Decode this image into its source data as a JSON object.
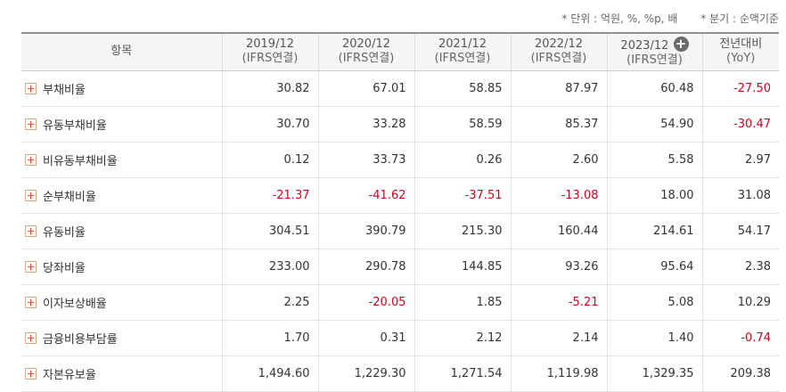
{
  "notes": {
    "unit": "* 단위 : 억원, %, %p, 배",
    "basis": "* 분기 : 순액기준"
  },
  "header": {
    "item": "항목",
    "cols": [
      {
        "year": "2019/12",
        "sub": "(IFRS연결)"
      },
      {
        "year": "2020/12",
        "sub": "(IFRS연결)"
      },
      {
        "year": "2021/12",
        "sub": "(IFRS연결)"
      },
      {
        "year": "2022/12",
        "sub": "(IFRS연결)"
      },
      {
        "year": "2023/12",
        "sub": "(IFRS연결)"
      }
    ],
    "yoy": {
      "label": "전년대비",
      "sub": "(YoY)"
    },
    "add_icon": "plus-circle-icon"
  },
  "rows": [
    {
      "label": "부채비율",
      "values": [
        "30.82",
        "67.01",
        "58.85",
        "87.97",
        "60.48",
        "-27.50"
      ]
    },
    {
      "label": "유동부채비율",
      "values": [
        "30.70",
        "33.28",
        "58.59",
        "85.37",
        "54.90",
        "-30.47"
      ]
    },
    {
      "label": "비유동부채비율",
      "values": [
        "0.12",
        "33.73",
        "0.26",
        "2.60",
        "5.58",
        "2.97"
      ]
    },
    {
      "label": "순부채비율",
      "values": [
        "-21.37",
        "-41.62",
        "-37.51",
        "-13.08",
        "18.00",
        "31.08"
      ]
    },
    {
      "label": "유동비율",
      "values": [
        "304.51",
        "390.79",
        "215.30",
        "160.44",
        "214.61",
        "54.17"
      ]
    },
    {
      "label": "당좌비율",
      "values": [
        "233.00",
        "290.78",
        "144.85",
        "93.26",
        "95.64",
        "2.38"
      ]
    },
    {
      "label": "이자보상배율",
      "values": [
        "2.25",
        "-20.05",
        "1.85",
        "-5.21",
        "5.08",
        "10.29"
      ]
    },
    {
      "label": "금융비용부담률",
      "values": [
        "1.70",
        "0.31",
        "2.12",
        "2.14",
        "1.40",
        "-0.74"
      ]
    },
    {
      "label": "자본유보율",
      "values": [
        "1,494.60",
        "1,229.30",
        "1,271.54",
        "1,119.98",
        "1,329.35",
        "209.38"
      ]
    }
  ],
  "colors": {
    "negative": "#d0021b",
    "expand_icon": "#e8501f"
  }
}
